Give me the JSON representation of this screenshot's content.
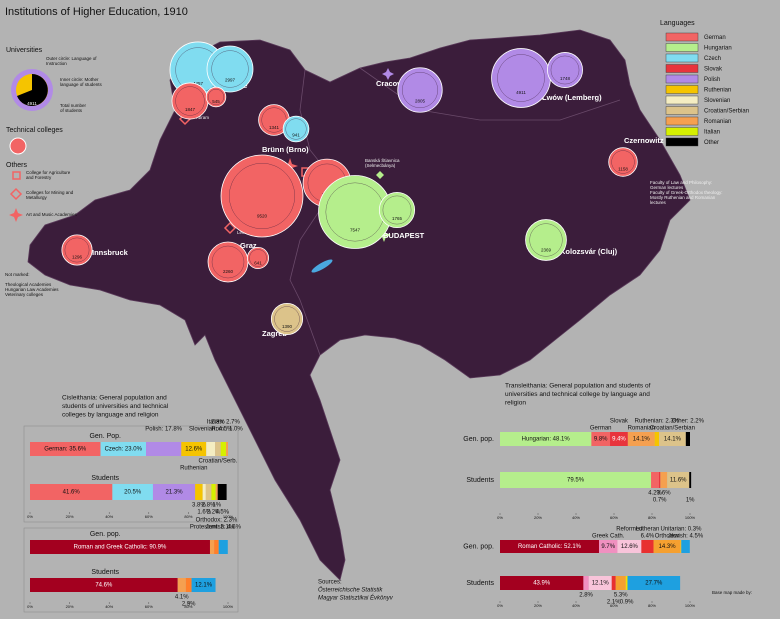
{
  "title": "Institutions of Higher Education, 1910",
  "legend": {
    "title": "Languages",
    "items": [
      {
        "name": "German",
        "color": "#f26464"
      },
      {
        "name": "Hungarian",
        "color": "#b5ee8c"
      },
      {
        "name": "Czech",
        "color": "#80dcf0"
      },
      {
        "name": "Slovak",
        "color": "#e8343c"
      },
      {
        "name": "Polish",
        "color": "#b18ae6"
      },
      {
        "name": "Ruthenian",
        "color": "#f5c400"
      },
      {
        "name": "Slovenian",
        "color": "#f4edc2"
      },
      {
        "name": "Croatian/Serbian",
        "color": "#dcc38a"
      },
      {
        "name": "Romanian",
        "color": "#f5a050"
      },
      {
        "name": "Italian",
        "color": "#d6f000"
      },
      {
        "name": "Other",
        "color": "#000000"
      }
    ]
  },
  "key": {
    "universities": "Universities",
    "outer": [
      "Outer circle: Language of",
      "Instruction"
    ],
    "inner": [
      "Inner circle: Mother",
      "language of students"
    ],
    "total": [
      "Total number",
      "of students"
    ],
    "example": 4911,
    "technical": "Technical colleges",
    "others": "Others",
    "agriculture": [
      "College for Agriculture",
      "and Forestry"
    ],
    "mining": [
      "Colleges for Mining and",
      "Metallurgy"
    ],
    "art": "Art and Music Academies",
    "not_marked": "Not marked:",
    "not_marked_items": [
      "Theological Academies",
      "Hungarian Law Academies",
      "Veterinary colleges"
    ]
  },
  "places": [
    "Příbram",
    "Leoben",
    "Banská Štiavnica",
    "(Selmecbánya)"
  ],
  "czernowitz_note": [
    "Faculty of Law and Philosophy:",
    "German lectures",
    "Faculty of Greek-Orthodox theology:",
    "Mostly Ruthenian and Romanian",
    "lectures"
  ],
  "cities": [
    {
      "name": "Prague",
      "institutions": [
        {
          "students": 4457,
          "language": "Czech"
        },
        {
          "students": 2997,
          "language": "Czech"
        },
        {
          "students": 1847,
          "language": "German"
        },
        {
          "students": 545,
          "language": "German"
        }
      ]
    },
    {
      "name": "Brünn (Brno)",
      "institutions": [
        {
          "students": 1341,
          "language": "German"
        },
        {
          "students": 941,
          "language": "Czech"
        }
      ]
    },
    {
      "name": "VIENNA",
      "institutions": [
        {
          "students": 9520,
          "language": "German"
        },
        {
          "students": 3239,
          "language": "German"
        }
      ]
    },
    {
      "name": "Graz",
      "institutions": [
        {
          "students": 2260,
          "language": "German"
        },
        {
          "students": 641,
          "language": "German"
        }
      ]
    },
    {
      "name": "Innsbruck",
      "institutions": [
        {
          "students": 1296,
          "language": "German"
        }
      ]
    },
    {
      "name": "Zagreb",
      "institutions": [
        {
          "students": 1390,
          "language": "Croatian/Serbian"
        }
      ]
    },
    {
      "name": "BUDAPEST",
      "institutions": [
        {
          "students": 7547,
          "language": "Hungarian"
        },
        {
          "students": 1765,
          "language": "Hungarian"
        }
      ]
    },
    {
      "name": "Cracow",
      "institutions": [
        {
          "students": 2805,
          "language": "Polish"
        }
      ]
    },
    {
      "name": "Lwów (Lemberg)",
      "institutions": [
        {
          "students": 4911,
          "language": "Polish"
        },
        {
          "students": 1748,
          "language": "Polish"
        }
      ]
    },
    {
      "name": "Czernowitz",
      "institutions": [
        {
          "students": 1158,
          "language": "German"
        }
      ]
    },
    {
      "name": "Kolozsvár (Cluj)",
      "institutions": [
        {
          "students": 2369,
          "language": "Hungarian"
        }
      ]
    }
  ],
  "percent_ticks": [
    {
      "value": 0,
      "label": "0%"
    },
    {
      "value": 20,
      "label": "20%"
    },
    {
      "value": 40,
      "label": "40%"
    },
    {
      "value": 60,
      "label": "60%"
    },
    {
      "value": 80,
      "label": "80%"
    },
    {
      "value": 100,
      "label": "100%"
    }
  ],
  "panels": [
    {
      "title": [
        "Cisleithania: General population and",
        "students of universities and technical",
        "colleges by language and religion"
      ],
      "rows": [
        {
          "label": "Gen. Pop.",
          "segments": [
            {
              "value": 35.6,
              "color": "#f26464",
              "label": "German: 35.6%"
            },
            {
              "value": 23.0,
              "color": "#80dcf0",
              "label": "Czech: 23.0%"
            },
            {
              "value": 17.8,
              "color": "#b18ae6",
              "label": "Polish: 17.8%"
            },
            {
              "value": 12.6,
              "color": "#f5c400",
              "label": "12.6%",
              "name": "Ruthenian"
            },
            {
              "value": 4.5,
              "color": "#f4edc2",
              "label": "Slovenian: 4.5%"
            },
            {
              "value": 2.8,
              "color": "#dcc38a",
              "label": "2.8%",
              "name": "Croatian/Serb."
            },
            {
              "value": 2.7,
              "color": "#d6f000",
              "label": "Italian: 2.7%"
            },
            {
              "value": 1.0,
              "color": "#f5a050",
              "label": "Rom.: 1.0%"
            }
          ]
        },
        {
          "label": "Students",
          "segments": [
            {
              "value": 41.6,
              "color": "#f26464",
              "label": "41.6%"
            },
            {
              "value": 20.5,
              "color": "#80dcf0",
              "label": "20.5%"
            },
            {
              "value": 21.3,
              "color": "#b18ae6",
              "label": "21.3%"
            },
            {
              "value": 3.8,
              "color": "#f5c400",
              "label": "3.8%"
            },
            {
              "value": 1.6,
              "color": "#f4edc2",
              "label": "1.6%"
            },
            {
              "value": 2.8,
              "color": "#dcc38a",
              "label": "2.8%"
            },
            {
              "value": 2.2,
              "color": "#d6f000",
              "label": "2.2%"
            },
            {
              "value": 1.0,
              "color": "#f5a050",
              "label": "1%"
            },
            {
              "value": 4.5,
              "color": "#000000",
              "label": "4.5%"
            }
          ]
        }
      ]
    },
    {
      "title": [],
      "rows": [
        {
          "label": "Gen. pop.",
          "segments": [
            {
              "value": 90.9,
              "color": "#a3001f",
              "label": "Roman and Greek Catholic: 90.9%"
            },
            {
              "value": 2.1,
              "color": "#f5a050",
              "label": "Protestant: 2.1%"
            },
            {
              "value": 2.3,
              "color": "#ff7f2a",
              "label": "Orthodox: 2.3%"
            },
            {
              "value": 4.6,
              "color": "#1ea0e0",
              "label": "Jewish: 4.6%"
            }
          ]
        },
        {
          "label": "Students",
          "segments": [
            {
              "value": 74.6,
              "color": "#a3001f",
              "label": "74.6%"
            },
            {
              "value": 4.1,
              "color": "#f5a050",
              "label": "4.1%"
            },
            {
              "value": 2.9,
              "color": "#ff7f2a",
              "label": "2.9%"
            },
            {
              "value": 12.1,
              "color": "#1ea0e0",
              "label": "12.1%"
            }
          ]
        }
      ]
    },
    {
      "title": [
        "Transleithania: General population and students of",
        "universities and technical college by language and",
        "religion"
      ],
      "rows": [
        {
          "label": "Gen. pop.",
          "segments": [
            {
              "value": 48.1,
              "color": "#b5ee8c",
              "label": "Hungarian: 48.1%"
            },
            {
              "value": 9.8,
              "color": "#f26464",
              "label": "9.8%",
              "name": "German"
            },
            {
              "value": 9.4,
              "color": "#e8343c",
              "label": "9.4%",
              "name": "Slovak"
            },
            {
              "value": 14.1,
              "color": "#f5a050",
              "label": "14.1%",
              "name": "Romanian"
            },
            {
              "value": 2.3,
              "color": "#f5c400",
              "label": "Ruthenian: 2.3%"
            },
            {
              "value": 14.1,
              "color": "#dcc38a",
              "label": "14.1%",
              "name": "Croatian/Serbian"
            },
            {
              "value": 2.2,
              "color": "#000000",
              "label": "Other: 2.2%"
            }
          ]
        },
        {
          "label": "Students",
          "segments": [
            {
              "value": 79.5,
              "color": "#b5ee8c",
              "label": "79.5%"
            },
            {
              "value": 4.2,
              "color": "#f26464",
              "label": "4.2%"
            },
            {
              "value": 0.7,
              "color": "#e8343c",
              "label": "0.7%"
            },
            {
              "value": 3.6,
              "color": "#f5a050",
              "label": "3.6%"
            },
            {
              "value": 11.6,
              "color": "#dcc38a",
              "label": "11.6%"
            },
            {
              "value": 1.0,
              "color": "#000000",
              "label": "1%"
            }
          ]
        }
      ]
    },
    {
      "title": [],
      "rows": [
        {
          "label": "Gen. pop.",
          "segments": [
            {
              "value": 52.1,
              "color": "#a3001f",
              "label": "Roman Catholic: 52.1%"
            },
            {
              "value": 9.7,
              "color": "#f090c0",
              "label": "9.7%",
              "name": "Greek Cath."
            },
            {
              "value": 12.6,
              "color": "#f8c4da",
              "label": "12.6%",
              "name": "Reformed"
            },
            {
              "value": 6.4,
              "color": "#e83030",
              "label": "6.4%",
              "name": "Lutheran"
            },
            {
              "value": 14.3,
              "color": "#f5a030",
              "label": "14.3%",
              "name": "Orthodox"
            },
            {
              "value": 0.3,
              "color": "#f5e000",
              "label": "Unitarian: 0.3%"
            },
            {
              "value": 4.5,
              "color": "#1ea0e0",
              "label": "Jewish: 4.5%"
            }
          ]
        },
        {
          "label": "Students",
          "segments": [
            {
              "value": 43.9,
              "color": "#a3001f",
              "label": "43.9%"
            },
            {
              "value": 2.8,
              "color": "#f090c0",
              "label": "2.8%"
            },
            {
              "value": 12.1,
              "color": "#f8c4da",
              "label": "12.1%"
            },
            {
              "value": 2.1,
              "color": "#e83030",
              "label": "2.1%"
            },
            {
              "value": 5.3,
              "color": "#f5a030",
              "label": "5.3%"
            },
            {
              "value": 0.9,
              "color": "#f5e000",
              "label": "0.9%"
            },
            {
              "value": 27.7,
              "color": "#1ea0e0",
              "label": "27.7%"
            }
          ]
        }
      ]
    }
  ],
  "sources": [
    "Sources:",
    "Österreichische Statistik",
    "Magyar Statisztikai Évkönyv"
  ],
  "credit": "Base map made by:"
}
